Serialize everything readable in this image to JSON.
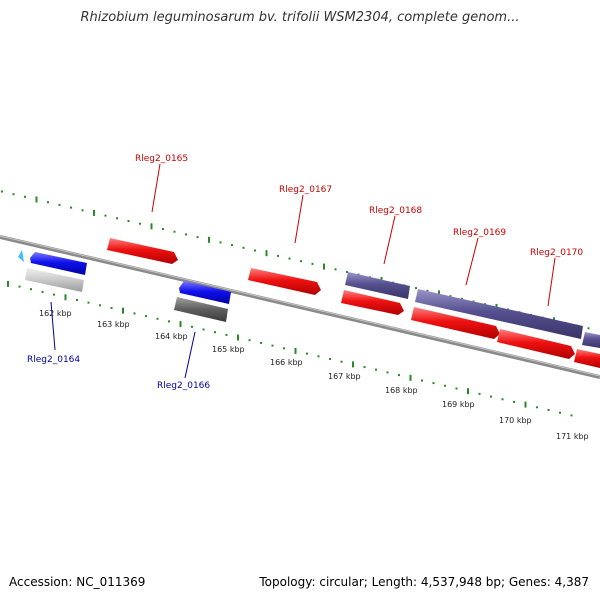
{
  "title": "Rhizobium leguminosarum bv. trifolii WSM2304, complete genom...",
  "footer": {
    "accession": "Accession: NC_011369",
    "summary": "Topology: circular; Length: 4,537,948 bp; Genes: 4,387"
  },
  "colors": {
    "forward_gene": "#ee1111",
    "reverse_gene": "#1111ee",
    "forward_label": "#cc0000",
    "reverse_label": "#0000aa",
    "cds_purple": "#55508f",
    "gray_light": "#c9c9c9",
    "gray_dark": "#5e5e5e",
    "ticks": "#2a8a2a",
    "backbone": "#8a8a8a"
  },
  "kbp_labels": [
    "162 kbp",
    "163 kbp",
    "164 kbp",
    "165 kbp",
    "166 kbp",
    "167 kbp",
    "168 kbp",
    "169 kbp",
    "170 kbp",
    "171 kbp"
  ],
  "gene_labels": {
    "forward": [
      "Rleg2_0165",
      "Rleg2_0167",
      "Rleg2_0168",
      "Rleg2_0169",
      "Rleg2_0170"
    ],
    "reverse": [
      "Rleg2_0164",
      "Rleg2_0166"
    ]
  }
}
